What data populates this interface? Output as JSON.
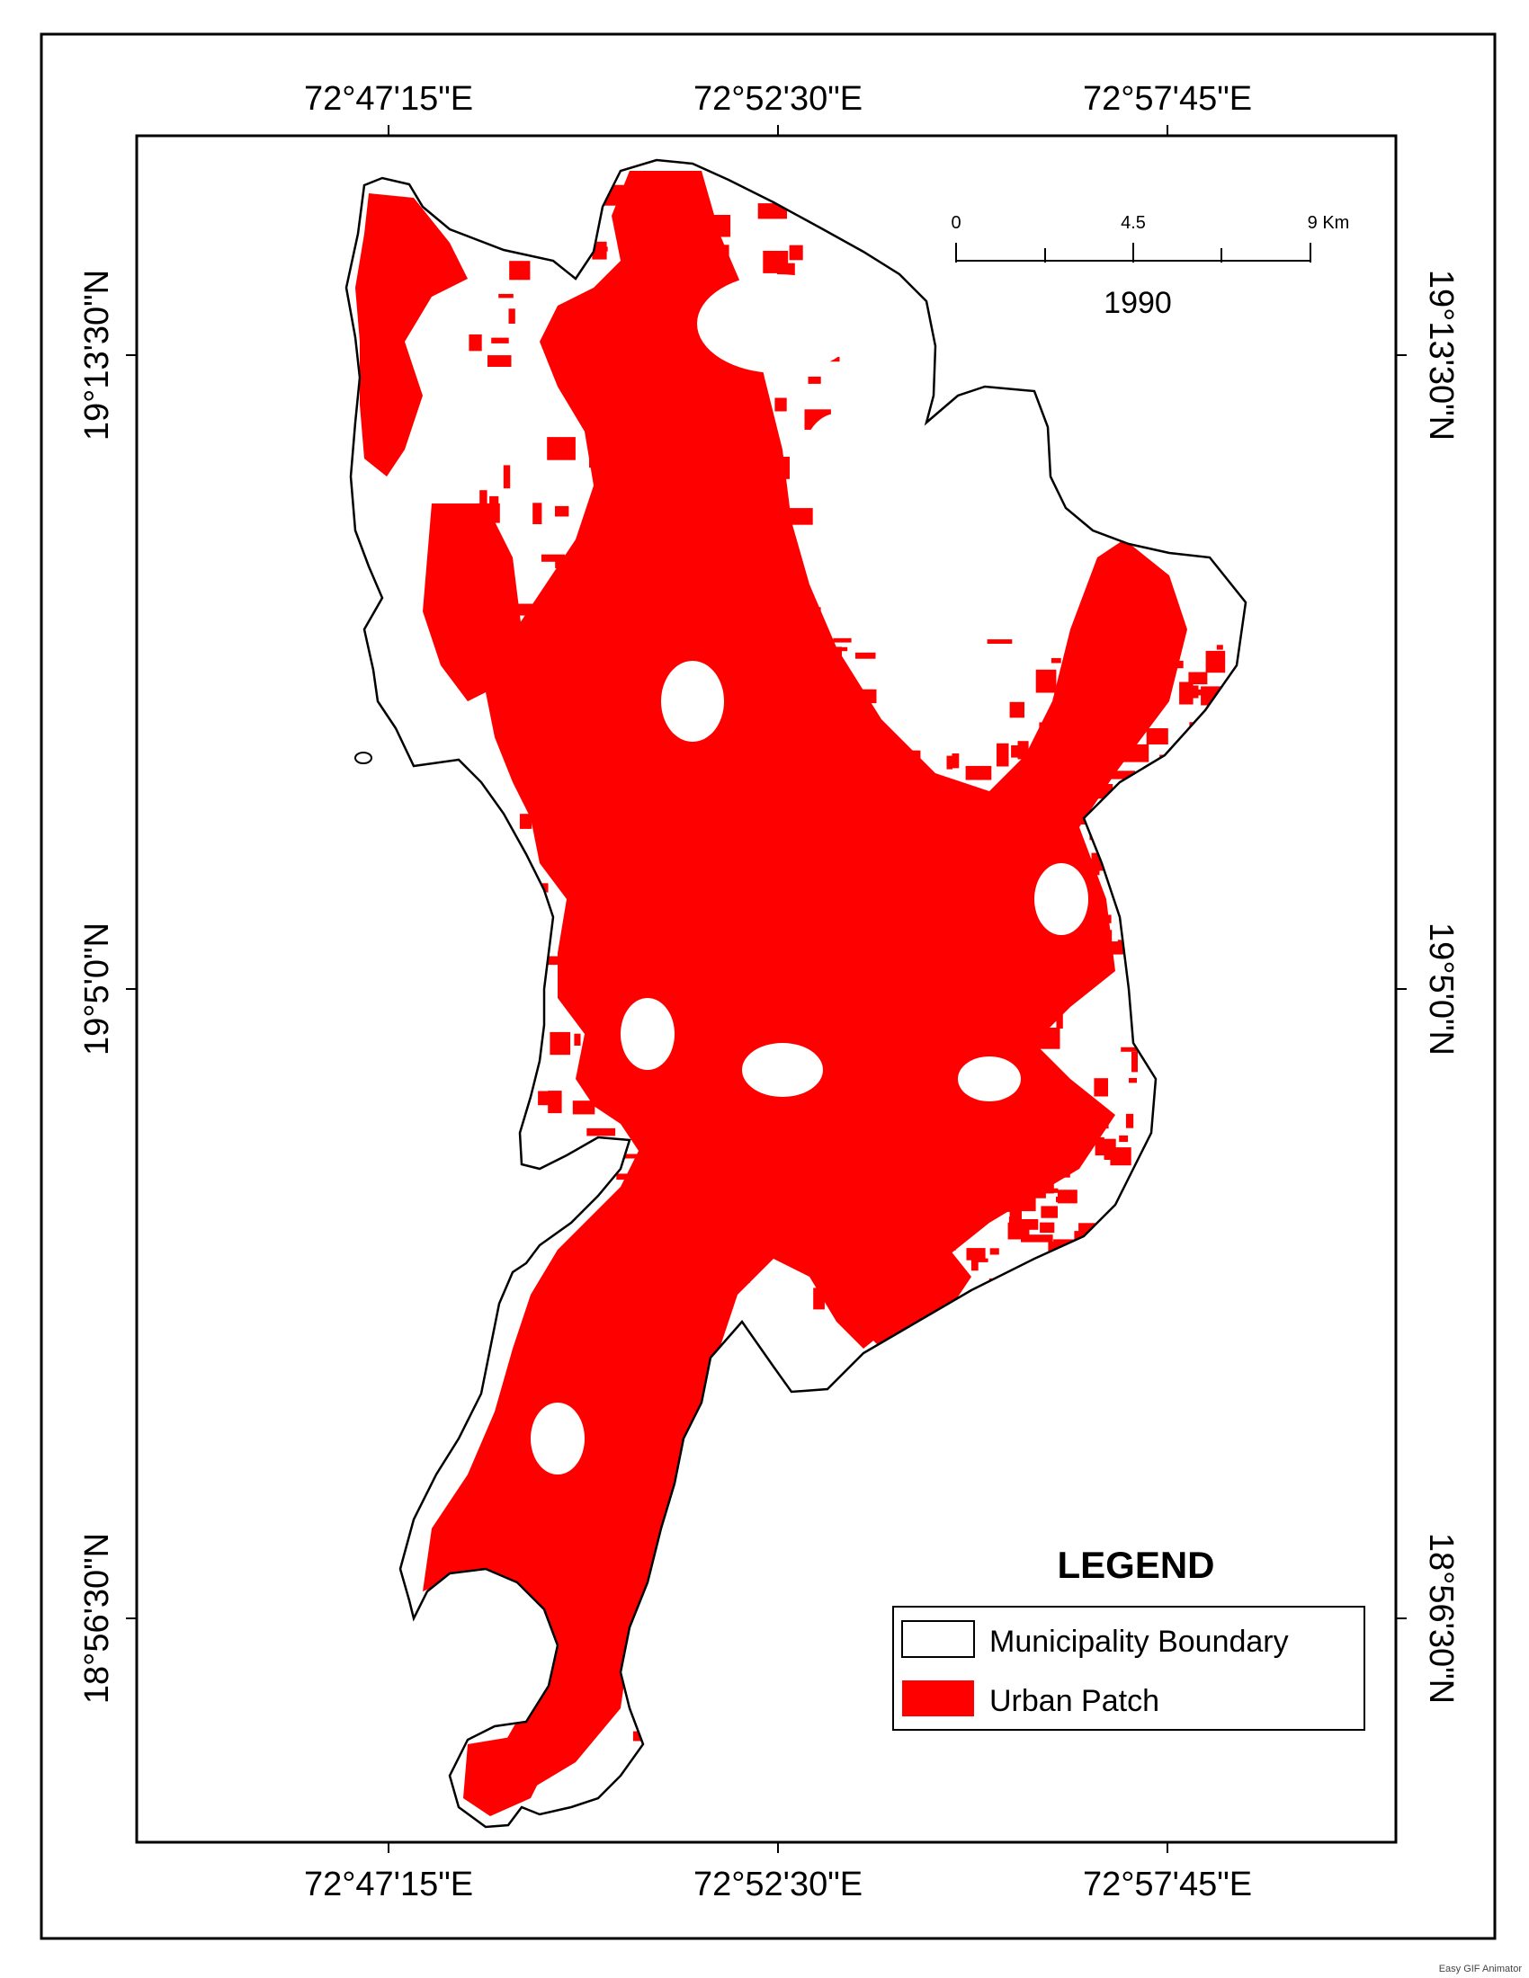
{
  "map": {
    "year": "1990",
    "coords": {
      "lon": [
        "72°47'15\"E",
        "72°52'30\"E",
        "72°57'45\"E"
      ],
      "lat": [
        "19°13'30\"N",
        "19°5'0\"N",
        "18°56'30\"N"
      ]
    },
    "scale_bar": {
      "labels": [
        "0",
        "4.5",
        "9 Km"
      ]
    },
    "legend": {
      "title": "LEGEND",
      "items": [
        {
          "label": "Municipality Boundary",
          "symbol": "outline"
        },
        {
          "label": "Urban Patch",
          "symbol": "fill"
        }
      ]
    },
    "colors": {
      "urban": "#ff0000",
      "boundary": "#000000",
      "background": "#ffffff"
    }
  },
  "watermark": "Easy GIF Animator"
}
